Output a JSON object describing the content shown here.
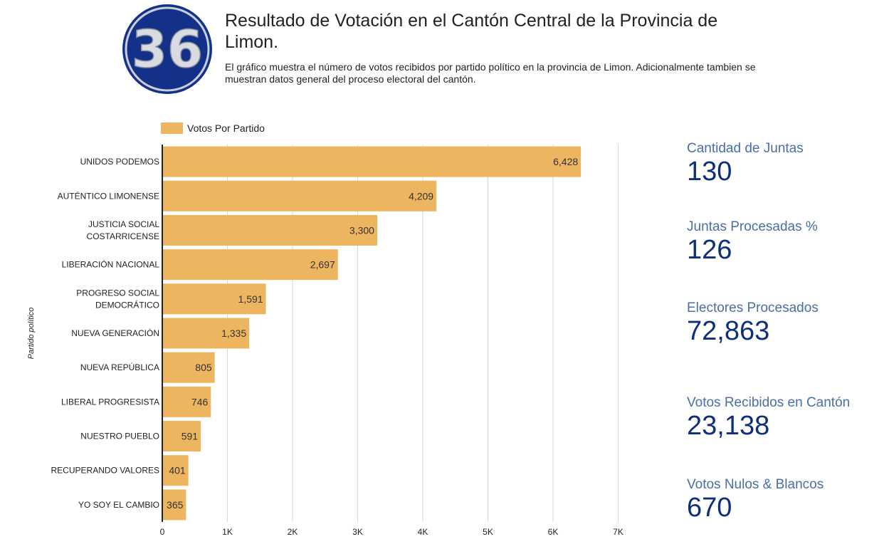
{
  "header": {
    "logo_text": "36",
    "title": "Resultado de Votación en el Cantón Central de la Provincia de Limon.",
    "subtitle": "El gráfico muestra el número de votos recibidos por partido político en la provincia de Limon. Adicionalmente tambien se muestran datos general del proceso electoral del cantón."
  },
  "colors": {
    "bar": "#EDB55F",
    "kpi_label": "#4A6FA5",
    "kpi_value": "#0E2F7A",
    "logo": "#14318A"
  },
  "chart_data": {
    "type": "bar",
    "orientation": "horizontal",
    "categories": [
      "UNIDOS PODEMOS",
      "AUTÉNTICO LIMONENSE",
      "JUSTICIA SOCIAL COSTARRICENSE",
      "LIBERACIÓN NACIONAL",
      "PROGRESO SOCIAL DEMOCRÁTICO",
      "NUEVA GENERACIÓN",
      "NUEVA REPÚBLICA",
      "LIBERAL PROGRESISTA",
      "NUESTRO PUEBLO",
      "RECUPERANDO VALORES",
      "YO SOY EL CAMBIO"
    ],
    "series": [
      {
        "name": "Votos Por Partido",
        "values": [
          6428,
          4209,
          3300,
          2697,
          1591,
          1335,
          805,
          746,
          591,
          401,
          365
        ]
      }
    ],
    "value_labels": [
      "6,428",
      "4,209",
      "3,300",
      "2,697",
      "1,591",
      "1,335",
      "805",
      "746",
      "591",
      "401",
      "365"
    ],
    "ylabel": "Partido político",
    "xlabel": "",
    "xlim": [
      0,
      7000
    ],
    "xticks": [
      0,
      1000,
      2000,
      3000,
      4000,
      5000,
      6000,
      7000
    ],
    "xtick_labels": [
      "0",
      "1K",
      "2K",
      "3K",
      "4K",
      "5K",
      "6K",
      "7K"
    ],
    "grid": true,
    "legend": "top-left"
  },
  "kpis": [
    {
      "label": "Cantidad de Juntas",
      "value": "130"
    },
    {
      "label": "Juntas Procesadas %",
      "value": "126"
    },
    {
      "label": "Electores Procesados",
      "value": "72,863"
    },
    {
      "label": "Votos Recibidos en Cantón",
      "value": "23,138"
    },
    {
      "label": "Votos Nulos & Blancos",
      "value": "670"
    }
  ]
}
